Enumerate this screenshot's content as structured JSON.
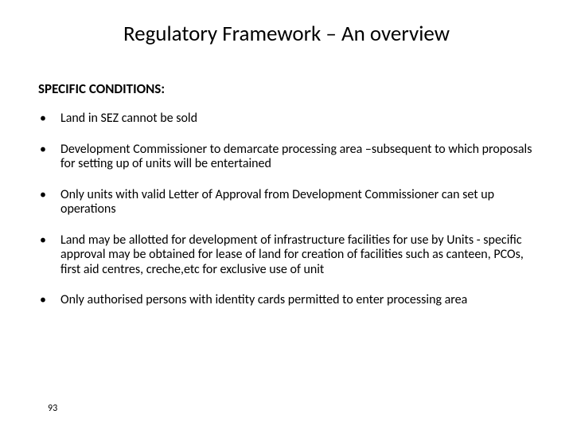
{
  "slide": {
    "title": "Regulatory Framework – An overview",
    "section_heading": "SPECIFIC CONDITIONS:",
    "bullets": [
      "Land in SEZ cannot be sold",
      "Development Commissioner to demarcate processing area –subsequent to which proposals for setting up of units will be entertained",
      "Only units with valid Letter of Approval from Development Commissioner can set up operations",
      "Land may be allotted for development of infrastructure facilities for use by Units - specific approval may be obtained for lease of land for creation of facilities such as canteen, PCOs, first aid centres, creche,etc for exclusive use of unit",
      "Only authorised persons with identity cards permitted to enter processing area"
    ],
    "page_number": "93"
  },
  "style": {
    "background_color": "#ffffff",
    "text_color": "#000000",
    "font_family": "Calibri",
    "title_fontsize": 27,
    "section_fontsize": 17,
    "body_fontsize": 16,
    "pagenum_fontsize": 12,
    "bullet_char": "•"
  }
}
